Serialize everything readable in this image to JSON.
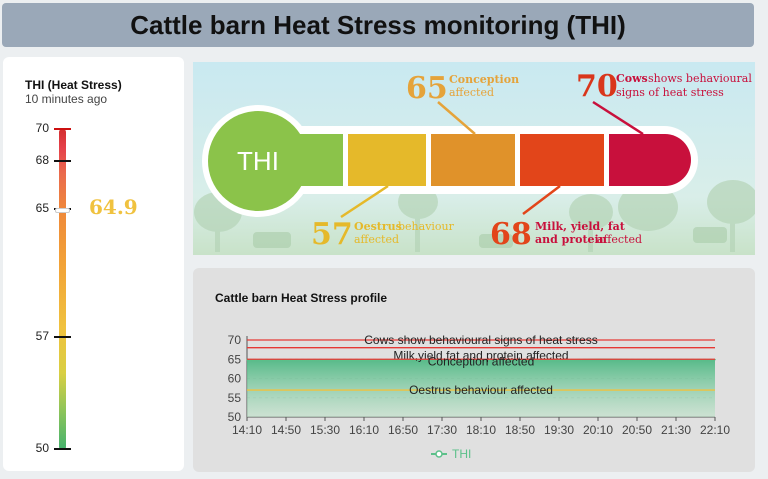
{
  "header": {
    "title": "Cattle barn Heat Stress monitoring (THI)"
  },
  "gauge": {
    "title": "THI (Heat Stress)",
    "updated": "10 minutes ago",
    "value": "64.9",
    "value_num": 64.9,
    "min": 50,
    "max": 70,
    "ticks": [
      "70",
      "68",
      "65",
      "57",
      "50"
    ]
  },
  "infographic": {
    "center_label": "THI",
    "t65": {
      "value": "65",
      "bold": "Conception",
      "rest": "affected"
    },
    "t70": {
      "value": "70",
      "bold": "Cows",
      "rest1": "shows behavioural",
      "rest2": "signs of heat stress"
    },
    "t57": {
      "value": "57",
      "bold": "Oestrus",
      "rest1": "behaviour",
      "rest2": "affected"
    },
    "t68": {
      "value": "68",
      "bold1": "Milk, yield, fat",
      "bold2": "and protein",
      "rest": "affected"
    }
  },
  "profile": {
    "title": "Cattle barn Heat Stress profile",
    "legend_label": "THI",
    "colors": {
      "thi": "#5cc08a",
      "thresholds": "#e53935",
      "oestrus": "#f0c23f"
    },
    "thresholds": [
      {
        "value": 70,
        "label": "Cows show behavioural signs of heat stress"
      },
      {
        "value": 68,
        "label": "Milk,yield,fat and protein affected"
      },
      {
        "value": 65,
        "label": "Conception affected"
      },
      {
        "value": 57,
        "label": "Oestrus behaviour affected"
      }
    ]
  },
  "chart_data": {
    "type": "area",
    "title": "Cattle barn Heat Stress profile",
    "xlabel": "",
    "ylabel": "",
    "ylim": [
      50,
      70
    ],
    "yticks": [
      50,
      55,
      60,
      65,
      70
    ],
    "x": [
      "14:10",
      "14:50",
      "15:30",
      "16:10",
      "16:50",
      "17:30",
      "18:10",
      "18:50",
      "19:30",
      "20:10",
      "20:50",
      "21:30",
      "22:10"
    ],
    "series": [
      {
        "name": "THI",
        "values": [
          64.9,
          64.8,
          64.8,
          64.7,
          64.8,
          64.9,
          64.8,
          64.8,
          64.8,
          65.0,
          64.9,
          64.9,
          64.9
        ]
      }
    ]
  }
}
